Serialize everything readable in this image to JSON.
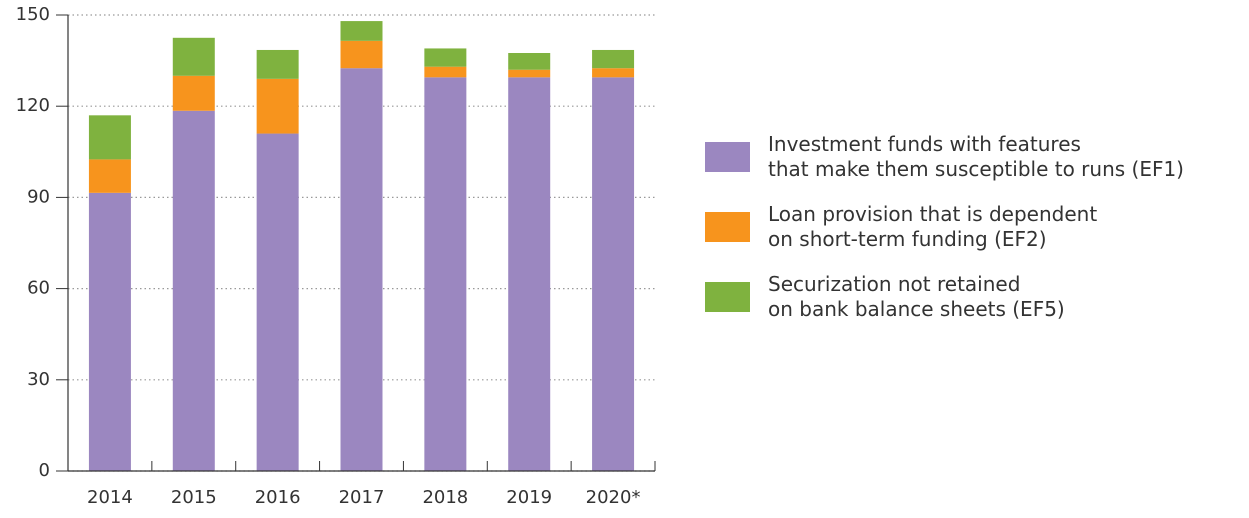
{
  "chart_data": {
    "type": "stacked_bar",
    "categories": [
      "2014",
      "2015",
      "2016",
      "2017",
      "2018",
      "2019",
      "2020*"
    ],
    "series": [
      {
        "name": "Investment funds with features\nthat make them susceptible to runs (EF1)",
        "color": "#9b87c0",
        "values": [
          91.5,
          118.5,
          111,
          132.5,
          129.5,
          129.5,
          129.5
        ]
      },
      {
        "name": "Loan provision that is dependent\non short-term funding (EF2)",
        "color": "#f7941d",
        "values": [
          11,
          11.5,
          18,
          9,
          3.5,
          2.5,
          3
        ]
      },
      {
        "name": "Securization not retained\non bank balance sheets (EF5)",
        "color": "#7fb23f",
        "values": [
          14.5,
          12.5,
          9.5,
          6.5,
          6,
          5.5,
          6
        ]
      }
    ],
    "ylim": [
      0,
      150
    ],
    "yticks": [
      0,
      30,
      60,
      90,
      120,
      150
    ],
    "grid": true
  }
}
